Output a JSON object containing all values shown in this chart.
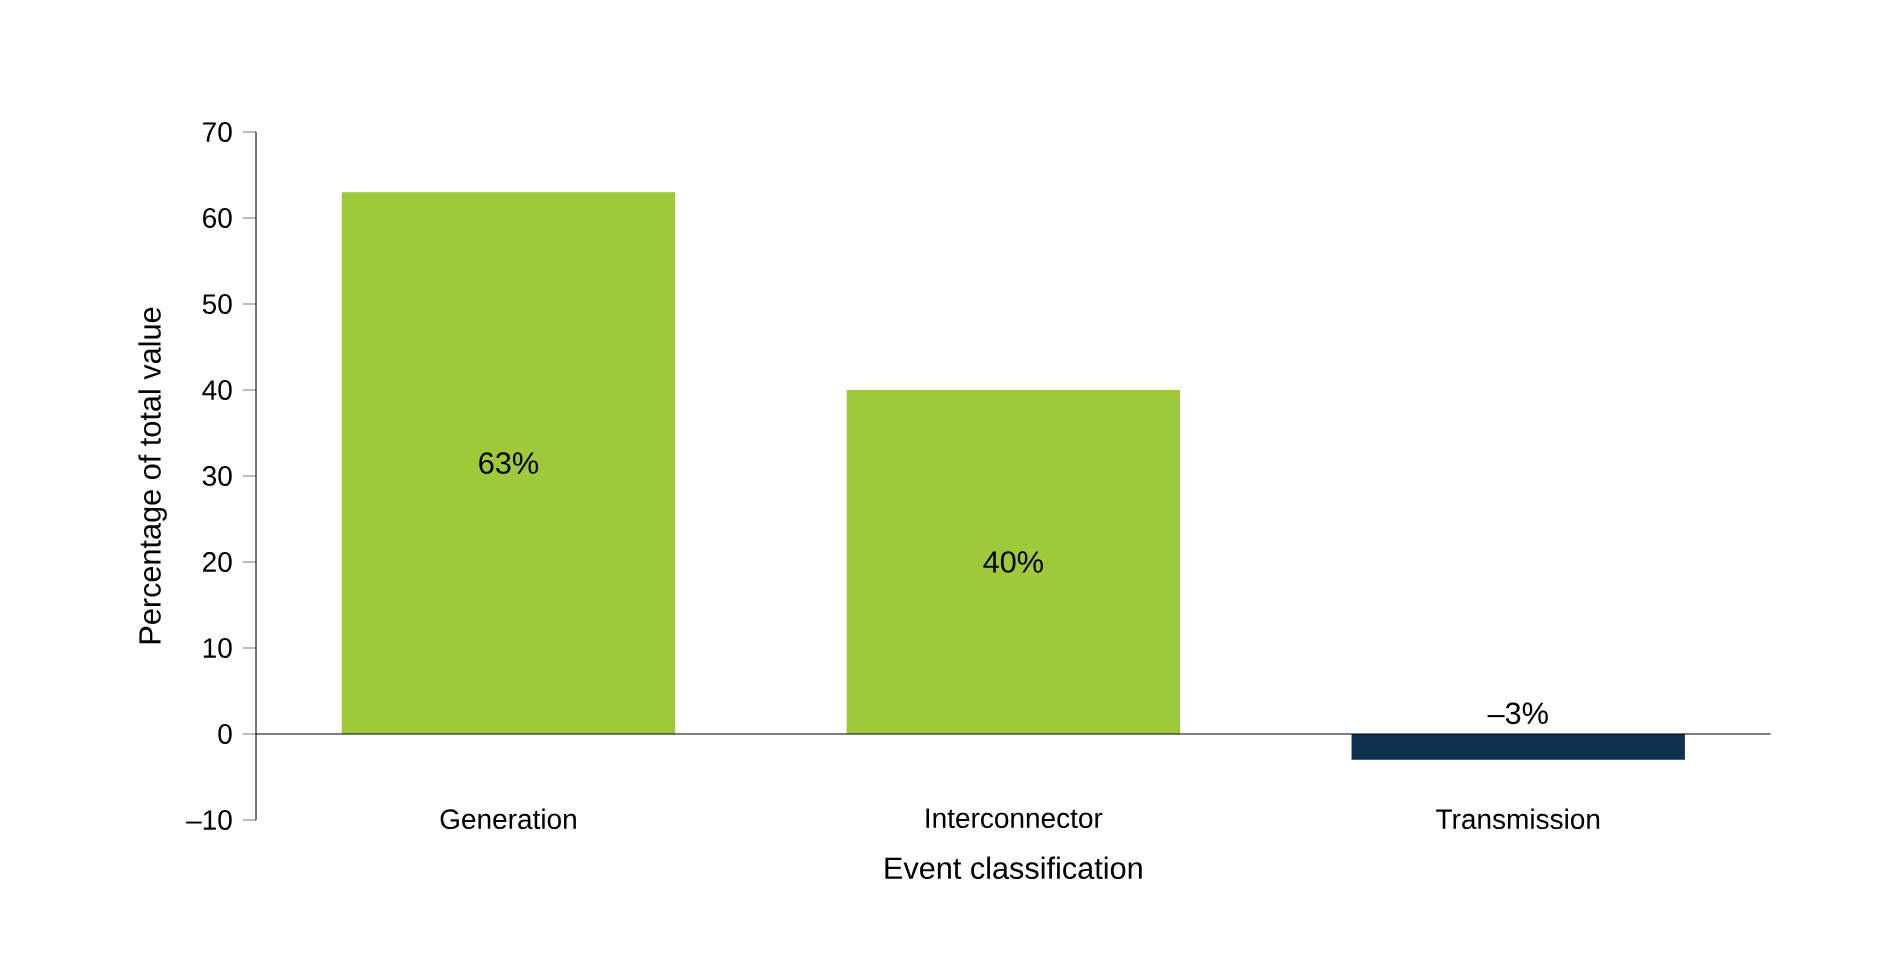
{
  "chart_data": {
    "type": "bar",
    "xlabel": "Event classification",
    "ylabel": "Percentage of total value",
    "categories": [
      "Generation",
      "Interconnector",
      "Transmission"
    ],
    "values": [
      63,
      40,
      -3
    ],
    "colors": [
      "#9dc93b",
      "#9dc93b",
      "#0f3150"
    ],
    "value_labels": [
      "63%",
      "40%",
      "–3%"
    ],
    "ylim": [
      -10,
      70
    ],
    "yticks": [
      {
        "value": -10,
        "label": "–10"
      },
      0,
      10,
      20,
      30,
      40,
      50,
      60,
      70
    ]
  }
}
